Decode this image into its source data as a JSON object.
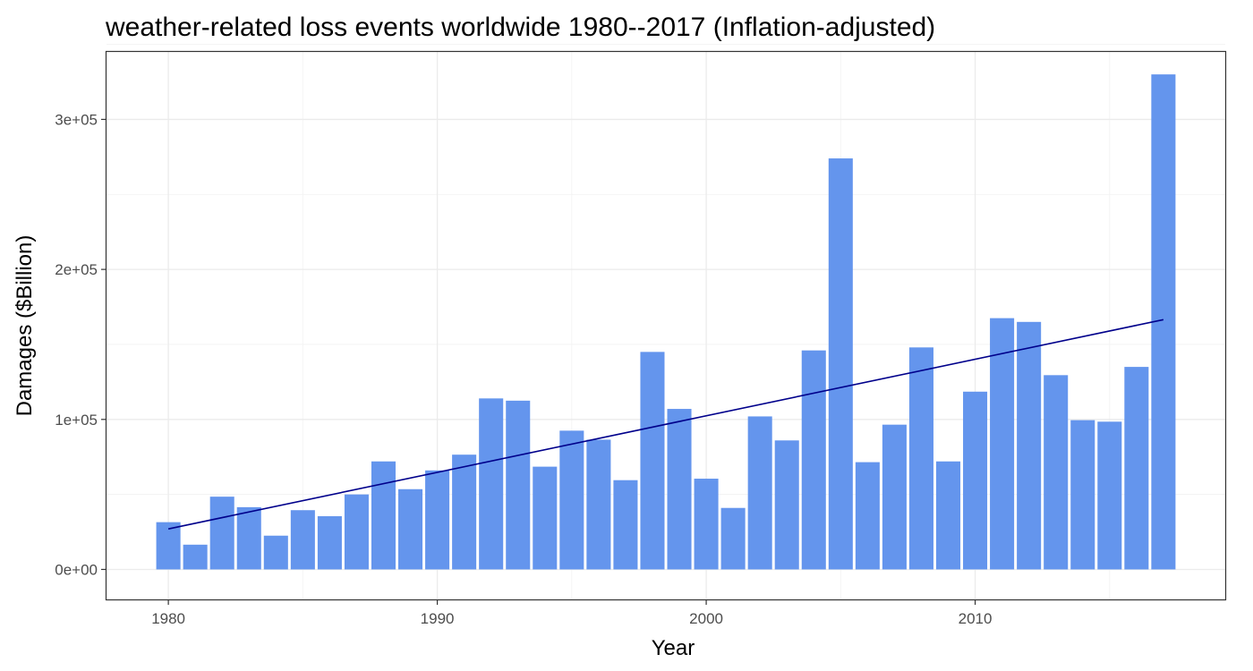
{
  "chart_data": {
    "type": "bar",
    "title": "weather-related loss events worldwide 1980--2017 (Inflation-adjusted)",
    "xlabel": "Year",
    "ylabel": "Damages ($Billion)",
    "x_ticks": [
      1980,
      1990,
      2000,
      2010
    ],
    "x_tick_labels": [
      "1980",
      "1990",
      "2000",
      "2010"
    ],
    "xlim": [
      1977.7,
      2019.3
    ],
    "y_ticks": [
      0,
      100000,
      200000,
      300000
    ],
    "y_tick_labels": [
      "0e+00",
      "1e+05",
      "2e+05",
      "3e+05"
    ],
    "ylim": [
      -20000,
      345000
    ],
    "grid": true,
    "categories": [
      1980,
      1981,
      1982,
      1983,
      1984,
      1985,
      1986,
      1987,
      1988,
      1989,
      1990,
      1991,
      1992,
      1993,
      1994,
      1995,
      1996,
      1997,
      1998,
      1999,
      2000,
      2001,
      2002,
      2003,
      2004,
      2005,
      2006,
      2007,
      2008,
      2009,
      2010,
      2011,
      2012,
      2013,
      2014,
      2015,
      2016,
      2017
    ],
    "series": [
      {
        "values": [
          31500,
          16500,
          48500,
          41500,
          22500,
          39500,
          35500,
          50000,
          72000,
          53500,
          66000,
          76500,
          114000,
          112500,
          68500,
          92500,
          86500,
          59500,
          145000,
          107000,
          60500,
          41000,
          102000,
          86000,
          146000,
          274000,
          71500,
          96500,
          148000,
          72000,
          118500,
          167500,
          165000,
          129500,
          99500,
          98500,
          135000,
          330000
        ],
        "color": "#6495ED"
      }
    ],
    "trend_line": {
      "x": [
        1980,
        2017
      ],
      "y": [
        27000,
        166500
      ],
      "color": "#00008B"
    }
  }
}
